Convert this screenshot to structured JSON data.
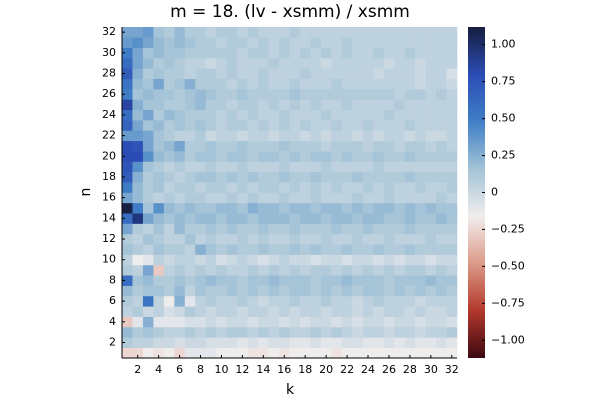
{
  "chart_data": {
    "type": "heatmap",
    "title": "m = 18. (lv - xsmm) / xsmm",
    "xlabel": "k",
    "ylabel": "n",
    "x": [
      1,
      2,
      3,
      4,
      5,
      6,
      7,
      8,
      9,
      10,
      11,
      12,
      13,
      14,
      15,
      16,
      17,
      18,
      19,
      20,
      21,
      22,
      23,
      24,
      25,
      26,
      27,
      28,
      29,
      30,
      31,
      32
    ],
    "y": [
      1,
      2,
      3,
      4,
      5,
      6,
      7,
      8,
      9,
      10,
      11,
      12,
      13,
      14,
      15,
      16,
      17,
      18,
      19,
      20,
      21,
      22,
      23,
      24,
      25,
      26,
      27,
      28,
      29,
      30,
      31,
      32
    ],
    "xlim": [
      0.5,
      32.5
    ],
    "ylim": [
      0.5,
      32.5
    ],
    "xticks": [
      2,
      4,
      6,
      8,
      10,
      12,
      14,
      16,
      18,
      20,
      22,
      24,
      26,
      28,
      30,
      32
    ],
    "yticks": [
      2,
      4,
      6,
      8,
      10,
      12,
      14,
      16,
      18,
      20,
      22,
      24,
      26,
      28,
      30,
      32
    ],
    "clim": [
      -1.12,
      1.12
    ],
    "colorbar_ticks": [
      {
        "value": -1,
        "label": "−1.00"
      },
      {
        "value": -0.75,
        "label": "−0.75"
      },
      {
        "value": -0.5,
        "label": "−0.50"
      },
      {
        "value": -0.25,
        "label": "−0.25"
      },
      0,
      {
        "value": 0.25,
        "label": "0.25"
      },
      {
        "value": 0.5,
        "label": "0.50"
      },
      {
        "value": 0.75,
        "label": "0.75"
      },
      {
        "value": 1,
        "label": "1.00"
      }
    ],
    "colormap": [
      "#3c0912",
      "#b2382b",
      "#dc9a88",
      "#f1eded",
      "#a3c3d6",
      "#3f7fc6",
      "#2b4cb5",
      "#161d3e"
    ],
    "z": [
      [
        -0.25,
        -0.25,
        -0.15,
        -0.2,
        -0.15,
        -0.25,
        -0.1,
        -0.1,
        -0.1,
        -0.15,
        -0.15,
        -0.15,
        -0.2,
        -0.2,
        -0.15,
        -0.2,
        -0.15,
        -0.15,
        -0.15,
        -0.15,
        -0.2,
        -0.15,
        -0.15,
        -0.15,
        -0.15,
        -0.15,
        -0.15,
        -0.15,
        -0.15,
        -0.15,
        -0.15,
        -0.15
      ],
      [
        0.1,
        0.05,
        0.05,
        0.0,
        0.0,
        -0.05,
        0.0,
        0.0,
        -0.05,
        -0.05,
        -0.05,
        -0.1,
        -0.05,
        -0.1,
        -0.05,
        -0.05,
        -0.1,
        -0.1,
        -0.05,
        -0.1,
        -0.1,
        -0.05,
        -0.05,
        -0.1,
        -0.1,
        -0.05,
        -0.1,
        -0.05,
        -0.1,
        -0.1,
        -0.05,
        -0.1
      ],
      [
        0.2,
        0.1,
        0.15,
        0.1,
        0.05,
        0.05,
        0.1,
        0.05,
        0.1,
        0.05,
        0.1,
        0.1,
        0.05,
        0.1,
        0.05,
        0.1,
        0.05,
        0.05,
        0.1,
        0.05,
        0.1,
        0.05,
        0.0,
        0.05,
        0.05,
        0.0,
        0.05,
        0.05,
        0.0,
        0.05,
        0.05,
        0.1
      ],
      [
        -0.3,
        -0.1,
        0.25,
        -0.1,
        -0.1,
        -0.1,
        -0.05,
        -0.05,
        0.0,
        -0.05,
        0.0,
        0.0,
        -0.05,
        0.0,
        0.0,
        -0.05,
        0.0,
        -0.05,
        0.0,
        0.0,
        -0.05,
        0.0,
        -0.05,
        0.0,
        0.0,
        -0.05,
        0.0,
        0.0,
        -0.05,
        0.0,
        0.0,
        -0.05
      ],
      [
        0.05,
        0.1,
        0.0,
        0.05,
        -0.05,
        0.0,
        0.1,
        0.05,
        0.0,
        0.05,
        0.05,
        0.0,
        0.05,
        0.05,
        0.0,
        0.05,
        0.0,
        0.05,
        0.05,
        0.0,
        0.05,
        0.05,
        0.0,
        0.05,
        0.0,
        0.05,
        0.05,
        0.0,
        0.05,
        0.0,
        0.0,
        0.05
      ],
      [
        0.1,
        0.05,
        0.55,
        0.05,
        -0.15,
        0.25,
        -0.1,
        0.05,
        0.1,
        0.05,
        0.05,
        0.1,
        0.05,
        0.0,
        0.05,
        0.05,
        0.1,
        0.05,
        0.05,
        0.1,
        0.05,
        0.05,
        0.0,
        0.05,
        0.1,
        0.05,
        0.05,
        0.05,
        0.0,
        0.05,
        0.05,
        0.05
      ],
      [
        0.2,
        0.1,
        0.15,
        0.15,
        0.1,
        0.2,
        0.05,
        0.15,
        0.1,
        0.1,
        0.15,
        0.1,
        0.15,
        0.1,
        0.15,
        0.1,
        0.15,
        0.15,
        0.1,
        0.15,
        0.1,
        0.15,
        0.1,
        0.15,
        0.15,
        0.1,
        0.15,
        0.1,
        0.15,
        0.1,
        0.15,
        0.1
      ],
      [
        0.6,
        0.15,
        0.2,
        0.1,
        0.1,
        0.15,
        0.1,
        0.15,
        0.2,
        0.15,
        0.15,
        0.1,
        0.15,
        0.15,
        0.2,
        0.15,
        0.15,
        0.15,
        0.1,
        0.15,
        0.15,
        0.2,
        0.15,
        0.15,
        0.15,
        0.1,
        0.15,
        0.15,
        0.15,
        0.2,
        0.15,
        0.15
      ],
      [
        0.1,
        0.05,
        0.3,
        -0.3,
        0.05,
        0.1,
        0.05,
        0.1,
        0.05,
        0.1,
        0.05,
        0.05,
        0.1,
        0.05,
        0.1,
        0.05,
        0.1,
        0.05,
        0.1,
        0.1,
        0.05,
        0.1,
        0.05,
        0.1,
        0.05,
        0.1,
        0.05,
        0.1,
        0.1,
        0.05,
        0.1,
        0.05
      ],
      [
        0.05,
        -0.15,
        -0.1,
        0.05,
        0.0,
        0.05,
        0.05,
        0.0,
        0.05,
        -0.05,
        0.0,
        0.05,
        0.0,
        -0.05,
        0.0,
        0.05,
        0.0,
        0.0,
        -0.05,
        0.0,
        0.0,
        -0.05,
        0.0,
        0.0,
        -0.05,
        0.0,
        -0.05,
        0.0,
        0.0,
        -0.05,
        0.0,
        0.0
      ],
      [
        0.15,
        0.1,
        0.05,
        0.15,
        0.1,
        0.1,
        0.05,
        0.25,
        0.15,
        0.1,
        0.15,
        0.1,
        0.1,
        0.15,
        0.1,
        0.1,
        0.15,
        0.1,
        0.15,
        0.1,
        0.1,
        0.15,
        0.1,
        0.1,
        0.15,
        0.1,
        0.1,
        0.15,
        0.1,
        0.1,
        0.1,
        0.1
      ],
      [
        0.1,
        0.05,
        0.15,
        0.1,
        0.05,
        0.05,
        0.15,
        0.05,
        0.1,
        0.05,
        0.05,
        0.1,
        0.05,
        0.1,
        0.05,
        0.05,
        0.1,
        0.05,
        0.05,
        0.1,
        0.05,
        0.05,
        0.1,
        0.05,
        0.05,
        0.1,
        0.05,
        0.05,
        0.05,
        0.1,
        0.05,
        0.05
      ],
      [
        0.3,
        0.1,
        0.05,
        0.15,
        0.05,
        0.2,
        0.1,
        0.1,
        0.15,
        0.1,
        0.15,
        0.1,
        0.1,
        0.15,
        0.1,
        0.1,
        0.15,
        0.1,
        0.1,
        0.1,
        0.15,
        0.1,
        0.1,
        0.15,
        0.1,
        0.1,
        0.1,
        0.15,
        0.1,
        0.1,
        0.1,
        0.1
      ],
      [
        0.6,
        0.95,
        0.3,
        0.2,
        0.15,
        0.2,
        0.15,
        0.2,
        0.2,
        0.15,
        0.2,
        0.2,
        0.15,
        0.2,
        0.2,
        0.2,
        0.15,
        0.2,
        0.2,
        0.15,
        0.2,
        0.2,
        0.15,
        0.2,
        0.2,
        0.15,
        0.15,
        0.2,
        0.15,
        0.15,
        0.2,
        0.15
      ],
      [
        1.1,
        0.5,
        0.15,
        0.4,
        0.2,
        0.15,
        0.2,
        0.15,
        0.15,
        0.2,
        0.2,
        0.15,
        0.25,
        0.2,
        0.2,
        0.15,
        0.2,
        0.2,
        0.15,
        0.2,
        0.2,
        0.15,
        0.2,
        0.15,
        0.2,
        0.2,
        0.15,
        0.2,
        0.15,
        0.2,
        0.15,
        0.15
      ],
      [
        0.3,
        0.2,
        0.1,
        0.05,
        0.1,
        0.05,
        0.1,
        0.1,
        0.05,
        0.05,
        0.1,
        0.05,
        0.1,
        0.05,
        0.05,
        0.1,
        0.05,
        0.05,
        0.1,
        0.05,
        0.05,
        0.05,
        0.1,
        0.05,
        0.05,
        0.1,
        0.05,
        0.05,
        0.05,
        0.05,
        0.1,
        0.05
      ],
      [
        0.5,
        0.2,
        0.1,
        0.15,
        0.05,
        0.1,
        0.1,
        0.05,
        0.1,
        0.1,
        0.05,
        0.1,
        0.05,
        0.1,
        0.1,
        0.05,
        0.1,
        0.05,
        0.1,
        0.05,
        0.1,
        0.05,
        0.05,
        0.1,
        0.05,
        0.1,
        0.05,
        0.05,
        0.1,
        0.05,
        0.05,
        0.1
      ],
      [
        0.7,
        0.25,
        0.1,
        0.15,
        0.1,
        0.05,
        0.1,
        0.15,
        0.15,
        0.1,
        0.15,
        0.1,
        0.15,
        0.1,
        0.1,
        0.15,
        0.1,
        0.1,
        0.15,
        0.1,
        0.1,
        0.1,
        0.15,
        0.1,
        0.1,
        0.1,
        0.1,
        0.15,
        0.1,
        0.1,
        0.1,
        0.1
      ],
      [
        0.75,
        0.4,
        0.15,
        0.1,
        0.05,
        0.1,
        0.05,
        0.05,
        0.1,
        0.05,
        0.05,
        0.1,
        0.05,
        0.05,
        0.05,
        0.1,
        0.05,
        0.05,
        0.05,
        0.1,
        0.05,
        0.05,
        0.05,
        0.05,
        0.1,
        0.05,
        0.05,
        0.05,
        0.05,
        0.05,
        0.05,
        0.05
      ],
      [
        0.8,
        0.8,
        0.4,
        0.2,
        0.15,
        0.2,
        0.1,
        0.15,
        0.15,
        0.1,
        0.15,
        0.15,
        0.1,
        0.15,
        0.15,
        0.1,
        0.15,
        0.1,
        0.15,
        0.15,
        0.1,
        0.15,
        0.1,
        0.1,
        0.15,
        0.1,
        0.1,
        0.15,
        0.1,
        0.1,
        0.1,
        0.1
      ],
      [
        0.8,
        0.75,
        0.3,
        0.15,
        0.2,
        0.3,
        0.1,
        0.1,
        0.15,
        0.1,
        0.1,
        0.15,
        0.1,
        0.1,
        0.1,
        0.15,
        0.1,
        0.1,
        0.1,
        0.05,
        0.1,
        0.1,
        0.1,
        0.05,
        0.1,
        0.1,
        0.05,
        0.1,
        0.1,
        0.05,
        0.1,
        0.05
      ],
      [
        0.35,
        0.35,
        0.3,
        0.15,
        0.1,
        0.05,
        0.05,
        0.1,
        0.0,
        0.05,
        0.05,
        0.0,
        0.05,
        0.05,
        0.0,
        0.05,
        0.05,
        0.0,
        0.05,
        0.0,
        0.05,
        0.05,
        0.0,
        0.05,
        0.0,
        0.05,
        0.05,
        0.0,
        0.05,
        0.0,
        0.0,
        0.05
      ],
      [
        0.65,
        0.3,
        0.15,
        0.2,
        0.1,
        0.15,
        0.1,
        0.15,
        0.1,
        0.05,
        0.1,
        0.1,
        0.05,
        0.1,
        0.05,
        0.1,
        0.05,
        0.1,
        0.05,
        0.05,
        0.1,
        0.05,
        0.05,
        0.1,
        0.05,
        0.05,
        0.05,
        0.1,
        0.05,
        0.05,
        0.05,
        0.05
      ],
      [
        0.6,
        0.2,
        0.3,
        0.1,
        0.2,
        0.15,
        0.1,
        0.1,
        0.1,
        0.05,
        0.1,
        0.05,
        0.1,
        0.05,
        0.05,
        0.1,
        0.05,
        0.05,
        0.05,
        0.1,
        0.05,
        0.05,
        0.05,
        0.05,
        0.05,
        0.1,
        0.05,
        0.05,
        0.05,
        0.05,
        0.05,
        0.05
      ],
      [
        0.85,
        0.25,
        0.15,
        0.15,
        0.1,
        0.1,
        0.15,
        0.2,
        0.1,
        0.1,
        0.05,
        0.1,
        0.1,
        0.05,
        0.1,
        0.05,
        0.1,
        0.05,
        0.1,
        0.05,
        0.05,
        0.1,
        0.05,
        0.05,
        0.05,
        0.05,
        0.1,
        0.05,
        0.05,
        0.05,
        0.05,
        0.05
      ],
      [
        0.5,
        0.15,
        0.2,
        0.15,
        0.15,
        0.1,
        0.15,
        0.2,
        0.15,
        0.1,
        0.1,
        0.15,
        0.1,
        0.1,
        0.1,
        0.1,
        0.15,
        0.1,
        0.1,
        0.1,
        0.1,
        0.1,
        0.1,
        0.1,
        0.1,
        0.1,
        0.05,
        0.1,
        0.1,
        0.05,
        0.1,
        0.05
      ],
      [
        0.55,
        0.2,
        0.15,
        0.3,
        0.1,
        0.15,
        0.25,
        0.1,
        0.1,
        0.1,
        0.05,
        0.1,
        0.05,
        0.1,
        0.05,
        0.05,
        0.1,
        0.05,
        0.05,
        0.05,
        0.1,
        0.05,
        0.05,
        0.05,
        0.05,
        0.05,
        0.05,
        0.05,
        0.0,
        0.05,
        0.05,
        0.0
      ],
      [
        0.7,
        0.25,
        0.1,
        0.15,
        0.1,
        0.1,
        0.05,
        0.1,
        0.1,
        0.05,
        0.1,
        0.05,
        0.05,
        0.1,
        0.05,
        0.05,
        0.05,
        0.1,
        0.05,
        0.05,
        0.05,
        0.05,
        0.05,
        0.05,
        0.0,
        0.05,
        0.05,
        0.05,
        0.0,
        0.05,
        0.05,
        -0.05
      ],
      [
        0.6,
        0.3,
        0.2,
        0.1,
        0.15,
        0.1,
        0.05,
        0.05,
        0.0,
        0.05,
        0.1,
        0.05,
        0.05,
        0.05,
        0.1,
        0.05,
        0.05,
        0.05,
        0.05,
        0.0,
        0.05,
        0.05,
        0.05,
        0.05,
        0.05,
        0.0,
        0.05,
        0.05,
        0.0,
        0.05,
        0.05,
        0.05
      ],
      [
        0.5,
        0.3,
        0.15,
        0.2,
        0.15,
        0.15,
        0.1,
        0.1,
        0.1,
        0.1,
        0.1,
        0.05,
        0.1,
        0.1,
        0.05,
        0.1,
        0.05,
        0.1,
        0.05,
        0.1,
        0.05,
        0.1,
        0.05,
        0.05,
        0.1,
        0.05,
        0.05,
        0.1,
        0.05,
        0.05,
        0.05,
        0.05
      ],
      [
        0.35,
        0.4,
        0.3,
        0.2,
        0.15,
        0.2,
        0.15,
        0.1,
        0.1,
        0.05,
        0.1,
        0.1,
        0.05,
        0.1,
        0.05,
        0.1,
        0.05,
        0.05,
        0.1,
        0.05,
        0.05,
        0.1,
        0.05,
        0.05,
        0.05,
        0.05,
        0.05,
        0.05,
        0.05,
        0.05,
        0.05,
        0.05
      ],
      [
        0.3,
        0.3,
        0.35,
        0.15,
        0.1,
        0.2,
        0.1,
        0.1,
        0.05,
        0.1,
        0.1,
        0.05,
        0.1,
        0.05,
        0.05,
        0.05,
        0.1,
        0.05,
        0.05,
        0.05,
        0.05,
        0.05,
        0.05,
        0.05,
        0.05,
        0.05,
        0.05,
        0.05,
        0.05,
        0.05,
        0.05,
        0.05
      ]
    ]
  }
}
